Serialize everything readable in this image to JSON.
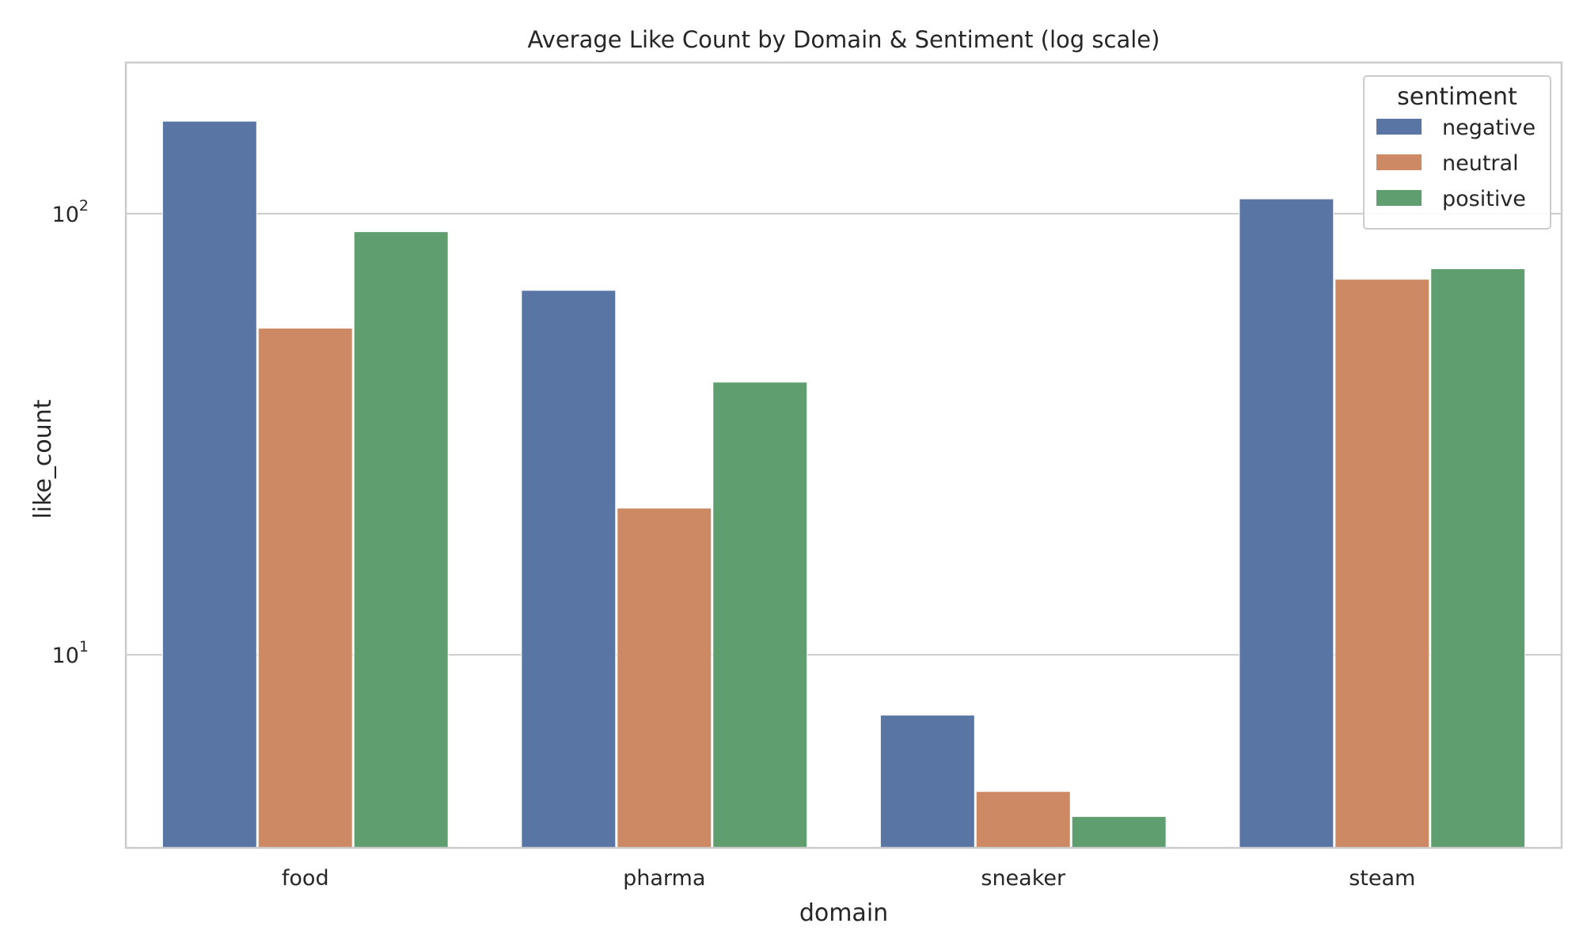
{
  "chart_data": {
    "type": "bar",
    "title": "Average Like Count by Domain & Sentiment (log scale)",
    "xlabel": "domain",
    "ylabel": "like_count",
    "categories": [
      "food",
      "pharma",
      "sneaker",
      "steam"
    ],
    "series": [
      {
        "name": "negative",
        "color": "#5975a4",
        "values": [
          162,
          67,
          7.3,
          108
        ]
      },
      {
        "name": "neutral",
        "color": "#cc8963",
        "values": [
          55,
          21.5,
          4.9,
          71
        ]
      },
      {
        "name": "positive",
        "color": "#5f9e6e",
        "values": [
          91,
          41.5,
          4.3,
          75
        ]
      }
    ],
    "yscale": "log",
    "ylim": [
      3.65,
      220
    ],
    "yticks": [
      {
        "value": 10,
        "base": "10",
        "exp": "1"
      },
      {
        "value": 100,
        "base": "10",
        "exp": "2"
      }
    ],
    "grid": true,
    "legend": {
      "title": "sentiment",
      "position": "top-right"
    }
  }
}
